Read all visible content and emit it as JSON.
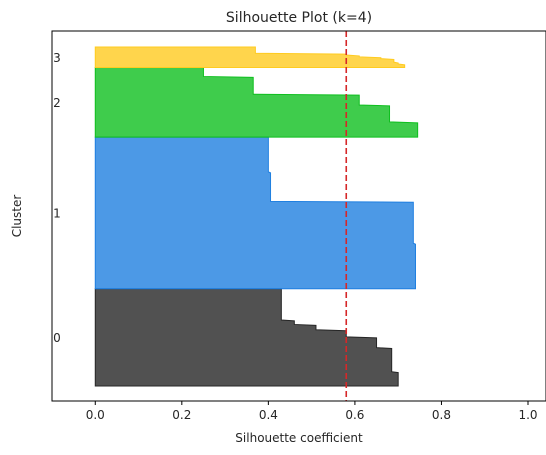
{
  "chart_data": {
    "type": "area",
    "title": "Silhouette Plot (k=4)",
    "xlabel": "Silhouette coefficient",
    "ylabel": "Cluster",
    "xlim": [
      -0.1,
      1.0
    ],
    "xticks": [
      "0.0",
      "0.2",
      "0.4",
      "0.6",
      "0.8",
      "1.0"
    ],
    "grid": false,
    "average_silhouette": 0.58,
    "average_line_color": "#d62728",
    "clusters": [
      {
        "label": "0",
        "color": "#262626",
        "sample_range": [
          0,
          109
        ],
        "profile": [
          [
            0,
            0.7
          ],
          [
            15,
            0.7
          ],
          [
            16,
            0.685
          ],
          [
            42,
            0.685
          ],
          [
            43,
            0.65
          ],
          [
            54,
            0.65
          ],
          [
            55,
            0.58
          ],
          [
            62,
            0.58
          ],
          [
            63,
            0.51
          ],
          [
            68,
            0.51
          ],
          [
            69,
            0.46
          ],
          [
            73,
            0.46
          ],
          [
            74,
            0.43
          ],
          [
            109,
            0.43
          ]
        ]
      },
      {
        "label": "1",
        "color": "#1f7fe0",
        "sample_range": [
          109,
          279
        ],
        "profile": [
          [
            0,
            0.74
          ],
          [
            50,
            0.74
          ],
          [
            51,
            0.735
          ],
          [
            97,
            0.735
          ],
          [
            98,
            0.405
          ],
          [
            130,
            0.405
          ],
          [
            131,
            0.4
          ],
          [
            170,
            0.4
          ]
        ]
      },
      {
        "label": "2",
        "color": "#0fbf1f",
        "sample_range": [
          279,
          357
        ],
        "profile": [
          [
            0,
            0.745
          ],
          [
            16,
            0.745
          ],
          [
            17,
            0.68
          ],
          [
            35,
            0.68
          ],
          [
            36,
            0.61
          ],
          [
            47,
            0.61
          ],
          [
            48,
            0.365
          ],
          [
            67,
            0.365
          ],
          [
            68,
            0.25
          ],
          [
            78,
            0.25
          ]
        ]
      },
      {
        "label": "3",
        "color": "#ffcb1f",
        "sample_range": [
          357,
          380
        ],
        "profile": [
          [
            0,
            0.715
          ],
          [
            3,
            0.715
          ],
          [
            4,
            0.7
          ],
          [
            5,
            0.7
          ],
          [
            6,
            0.69
          ],
          [
            9,
            0.69
          ],
          [
            10,
            0.66
          ],
          [
            11,
            0.66
          ],
          [
            12,
            0.61
          ],
          [
            13,
            0.61
          ],
          [
            14,
            0.58
          ],
          [
            15,
            0.58
          ],
          [
            16,
            0.37
          ],
          [
            23,
            0.37
          ]
        ]
      }
    ]
  }
}
